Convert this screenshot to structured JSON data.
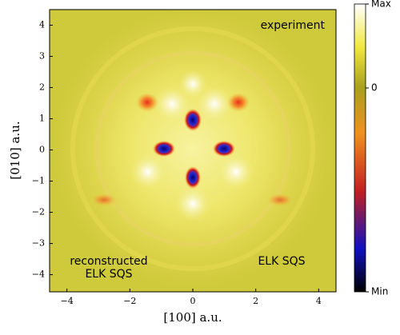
{
  "chart_data": {
    "type": "heatmap",
    "xlabel": "[100] a.u.",
    "ylabel": "[010] a.u.",
    "xlim": [
      -4.55,
      4.55
    ],
    "ylim": [
      -4.55,
      4.5
    ],
    "xticks": [
      {
        "value": -4,
        "label": "−4"
      },
      {
        "value": -2,
        "label": "−2"
      },
      0,
      2,
      4
    ],
    "yticks": [
      {
        "value": -4,
        "label": "−4"
      },
      {
        "value": -3,
        "label": "−3"
      },
      {
        "value": -2,
        "label": "−2"
      },
      {
        "value": -1,
        "label": "−1"
      },
      0,
      1,
      2,
      3,
      4
    ],
    "annotations": [
      "experiment",
      "reconstructed",
      "ELK SQS",
      "ELK SQS"
    ],
    "colorbar": {
      "labels": [
        "Max",
        "0",
        "Min"
      ]
    }
  }
}
